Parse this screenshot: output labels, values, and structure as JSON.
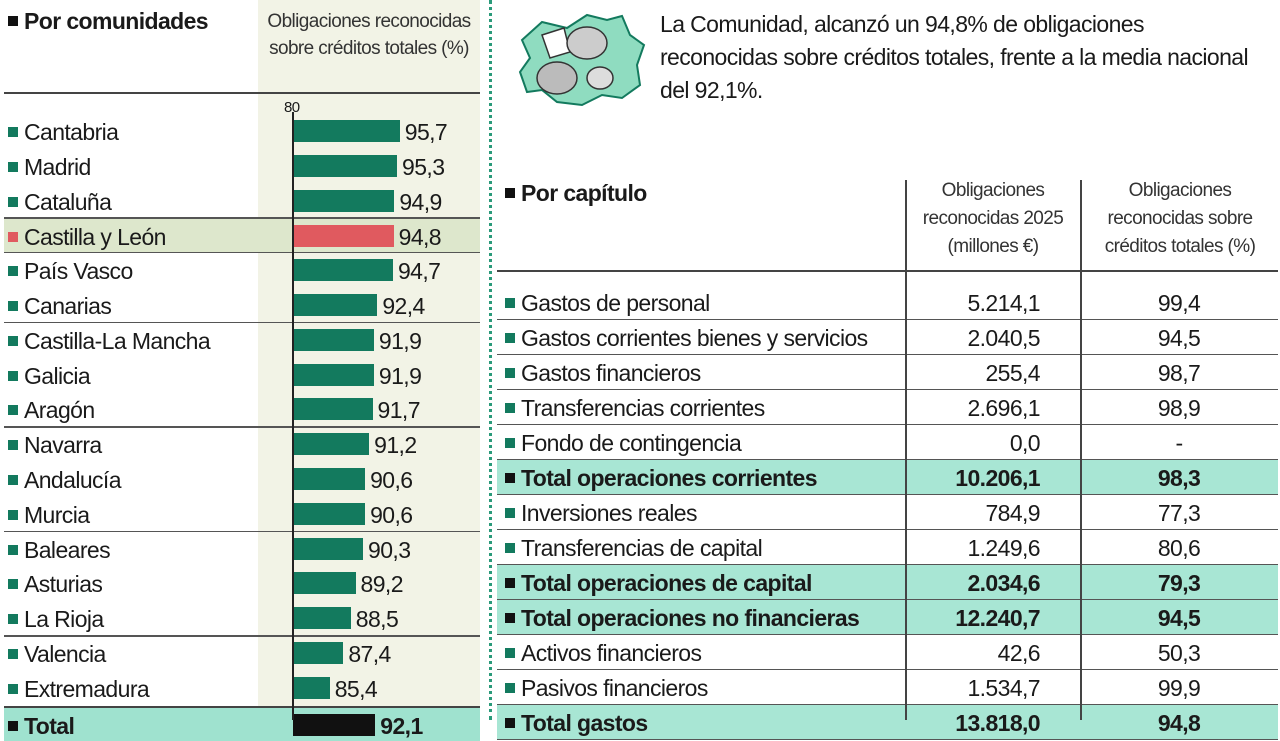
{
  "colors": {
    "bar": "#137a5e",
    "highlight": "#e05a5f",
    "total": "#111111",
    "total_bg": "#a8e6d4"
  },
  "left": {
    "title": "Por comunidades",
    "column_header": "Obligaciones reconocidas sobre créditos totales (%)"
  },
  "chart_data": {
    "type": "bar",
    "orientation": "horizontal",
    "title": "Por comunidades",
    "xlabel": "Obligaciones reconocidas sobre créditos totales (%)",
    "xlim": [
      80,
      100
    ],
    "axis_tick_label": "80",
    "categories": [
      "Cantabria",
      "Madrid",
      "Cataluña",
      "Castilla y León",
      "País Vasco",
      "Canarias",
      "Castilla-La Mancha",
      "Galicia",
      "Aragón",
      "Navarra",
      "Andalucía",
      "Murcia",
      "Baleares",
      "Asturias",
      "La Rioja",
      "Valencia",
      "Extremadura",
      "Total"
    ],
    "values": [
      95.7,
      95.3,
      94.9,
      94.8,
      94.7,
      92.4,
      91.9,
      91.9,
      91.7,
      91.2,
      90.6,
      90.6,
      90.3,
      89.2,
      88.5,
      87.4,
      85.4,
      92.1
    ],
    "labels": [
      "95,7",
      "95,3",
      "94,9",
      "94,8",
      "94,7",
      "92,4",
      "91,9",
      "91,9",
      "91,7",
      "91,2",
      "90,6",
      "90,6",
      "90,3",
      "89,2",
      "88,5",
      "87,4",
      "85,4",
      "92,1"
    ],
    "highlight": "Castilla y León",
    "total_category": "Total"
  },
  "intro": "La Comunidad, alcanzó un 94,8% de obligaciones reconocidas sobre créditos totales, frente a la media nacional del 92,1%.",
  "table": {
    "title": "Por capítulo",
    "headers": [
      "Obligaciones reconocidas 2025 (millones €)",
      "Obligaciones reconocidas sobre créditos totales (%)"
    ],
    "rows": [
      {
        "label": "Gastos de personal",
        "amount": "5.214,1",
        "pct": "99,4",
        "total": false
      },
      {
        "label": "Gastos corrientes bienes y servicios",
        "amount": "2.040,5",
        "pct": "94,5",
        "total": false
      },
      {
        "label": "Gastos financieros",
        "amount": "255,4",
        "pct": "98,7",
        "total": false
      },
      {
        "label": "Transferencias corrientes",
        "amount": "2.696,1",
        "pct": "98,9",
        "total": false
      },
      {
        "label": "Fondo de contingencia",
        "amount": "0,0",
        "pct": "-",
        "total": false
      },
      {
        "label": "Total operaciones corrientes",
        "amount": "10.206,1",
        "pct": "98,3",
        "total": true
      },
      {
        "label": "Inversiones reales",
        "amount": "784,9",
        "pct": "77,3",
        "total": false
      },
      {
        "label": "Transferencias de capital",
        "amount": "1.249,6",
        "pct": "80,6",
        "total": false
      },
      {
        "label": "Total operaciones de capital",
        "amount": "2.034,6",
        "pct": "79,3",
        "total": true
      },
      {
        "label": "Total operaciones no financieras",
        "amount": "12.240,7",
        "pct": "94,5",
        "total": true
      },
      {
        "label": "Activos financieros",
        "amount": "42,6",
        "pct": "50,3",
        "total": false
      },
      {
        "label": "Pasivos financieros",
        "amount": "1.534,7",
        "pct": "99,9",
        "total": false
      },
      {
        "label": "Total gastos",
        "amount": "13.818,0",
        "pct": "94,8",
        "total": true
      }
    ]
  }
}
